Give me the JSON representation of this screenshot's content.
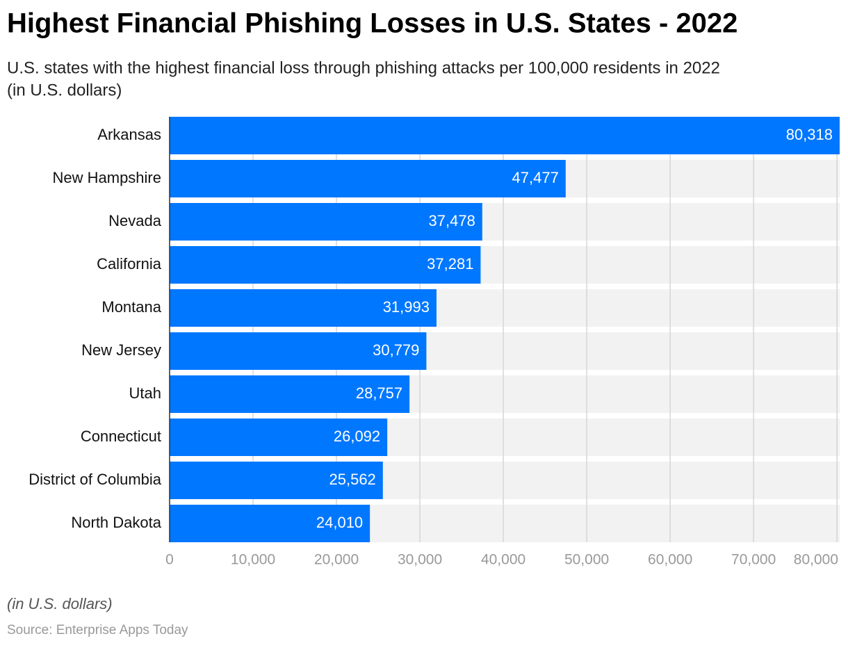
{
  "chart_data": {
    "type": "bar",
    "orientation": "horizontal",
    "title": "Highest Financial Phishing Losses in U.S. States - 2022",
    "subtitle": [
      "U.S. states with the highest financial loss through phishing attacks per 100,000 residents in 2022",
      "(in U.S. dollars)"
    ],
    "categories": [
      "Arkansas",
      "New Hampshire",
      "Nevada",
      "California",
      "Montana",
      "New Jersey",
      "Utah",
      "Connecticut",
      "District of Columbia",
      "North Dakota"
    ],
    "values": [
      80318,
      47477,
      37478,
      37281,
      31993,
      30779,
      28757,
      26092,
      25562,
      24010
    ],
    "value_labels": [
      "80,318",
      "47,477",
      "37,478",
      "37,281",
      "31,993",
      "30,779",
      "28,757",
      "26,092",
      "25,562",
      "24,010"
    ],
    "color": "#0077ff",
    "xlim": [
      0,
      80318
    ],
    "xticks": [
      0,
      {
        "value": 10000,
        "label": "10,000"
      },
      {
        "value": 20000,
        "label": "20,000"
      },
      {
        "value": 30000,
        "label": "30,000"
      },
      {
        "value": 40000,
        "label": "40,000"
      },
      {
        "value": 50000,
        "label": "50,000"
      },
      {
        "value": 60000,
        "label": "60,000"
      },
      {
        "value": 70000,
        "label": "70,000"
      },
      {
        "value": 80000,
        "label": "80,000"
      }
    ],
    "grid": true,
    "note": "(in U.S. dollars)",
    "source": "Source: Enterprise Apps Today"
  }
}
